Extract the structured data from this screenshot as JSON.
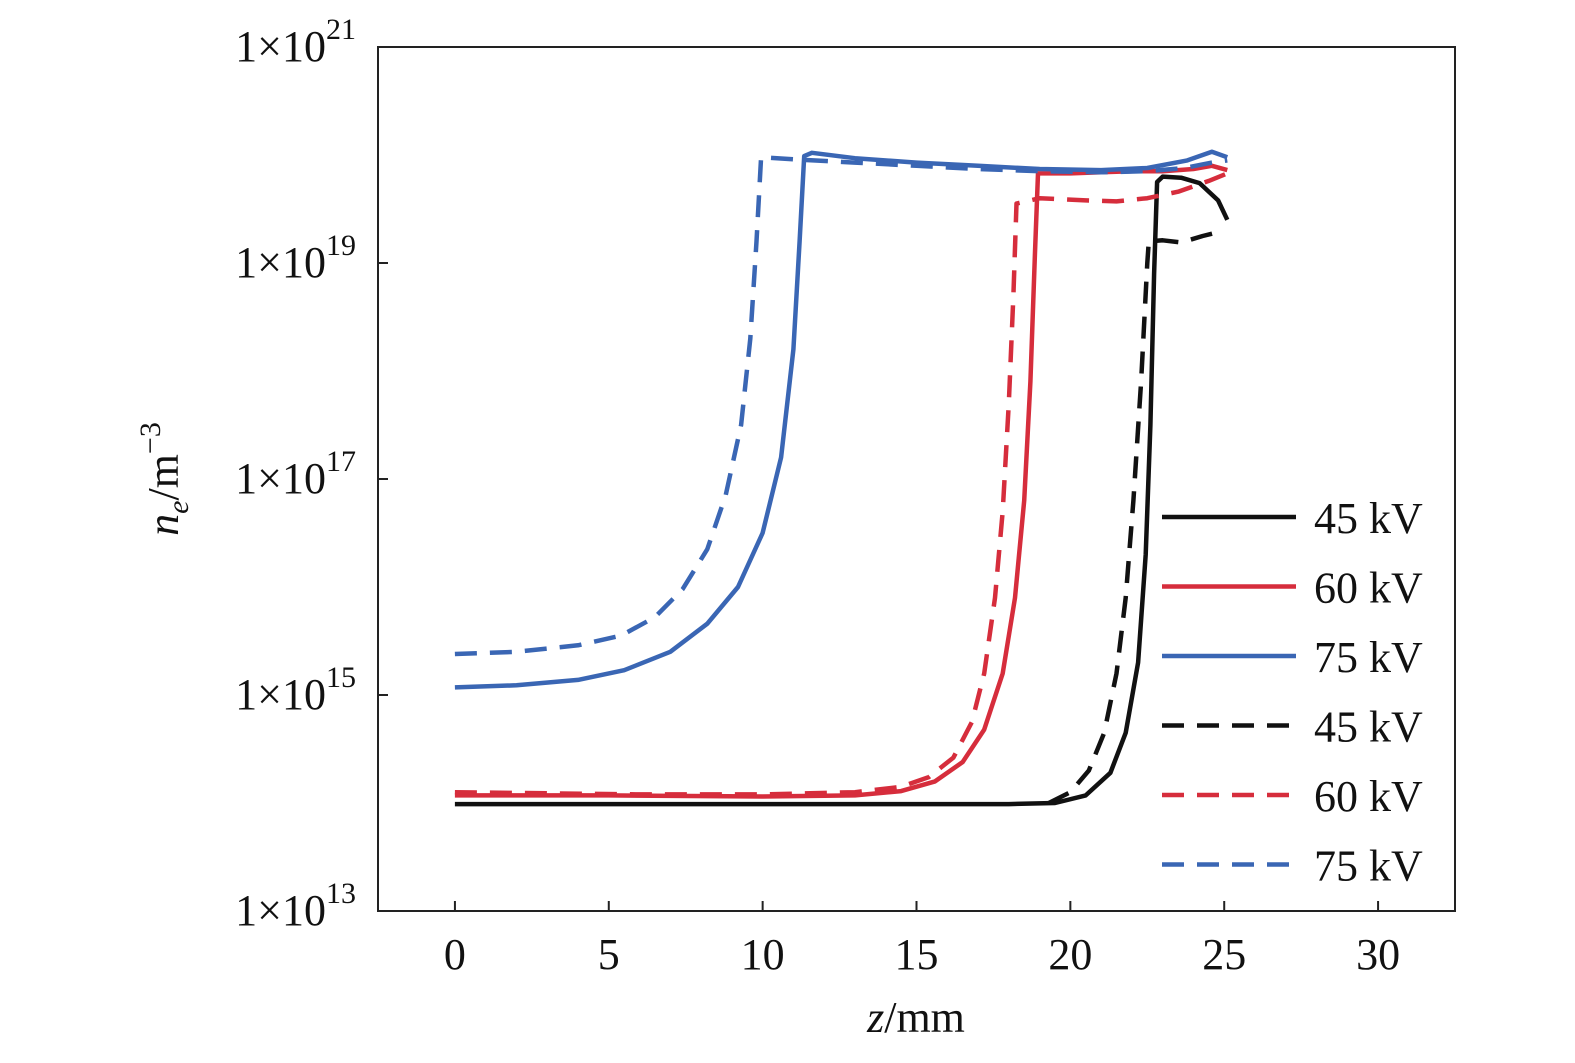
{
  "chart_data": {
    "type": "line",
    "title": "",
    "xlabel": {
      "var": "z",
      "unit": "/mm"
    },
    "ylabel": {
      "var": "n",
      "sub": "e",
      "unit": "/m",
      "sup": "−3"
    },
    "xlim": [
      -2.5,
      32.5
    ],
    "ylim_log10": [
      13,
      21
    ],
    "y_scale": "log",
    "grid": false,
    "legend_position": "right",
    "x_ticks": [
      {
        "value": 0,
        "label": "0"
      },
      {
        "value": 5,
        "label": "5"
      },
      {
        "value": 10,
        "label": "10"
      },
      {
        "value": 15,
        "label": "15"
      },
      {
        "value": 20,
        "label": "20"
      },
      {
        "value": 25,
        "label": "25"
      },
      {
        "value": 30,
        "label": "30"
      }
    ],
    "y_ticks": [
      {
        "log": 13,
        "mantissa": "1×10",
        "exp": "13"
      },
      {
        "log": 15,
        "mantissa": "1×10",
        "exp": "15"
      },
      {
        "log": 17,
        "mantissa": "1×10",
        "exp": "17"
      },
      {
        "log": 19,
        "mantissa": "1×10",
        "exp": "19"
      },
      {
        "log": 21,
        "mantissa": "1×10",
        "exp": "21"
      }
    ],
    "series": [
      {
        "name": "45 kV",
        "color": "#111111",
        "dash": "solid",
        "points": [
          [
            0,
            13.99
          ],
          [
            5,
            13.99
          ],
          [
            10,
            13.99
          ],
          [
            15,
            13.99
          ],
          [
            18,
            13.99
          ],
          [
            19.5,
            14.0
          ],
          [
            20.5,
            14.07
          ],
          [
            21.3,
            14.28
          ],
          [
            21.8,
            14.65
          ],
          [
            22.2,
            15.3
          ],
          [
            22.45,
            16.3
          ],
          [
            22.6,
            17.5
          ],
          [
            22.72,
            18.9
          ],
          [
            22.82,
            19.75
          ],
          [
            23.0,
            19.8
          ],
          [
            23.6,
            19.79
          ],
          [
            24.2,
            19.74
          ],
          [
            24.8,
            19.58
          ],
          [
            25.1,
            19.4
          ]
        ]
      },
      {
        "name": "60 kV",
        "color": "#d62d3c",
        "dash": "solid",
        "points": [
          [
            0,
            14.07
          ],
          [
            5,
            14.07
          ],
          [
            10,
            14.06
          ],
          [
            13,
            14.07
          ],
          [
            14.5,
            14.11
          ],
          [
            15.6,
            14.2
          ],
          [
            16.5,
            14.38
          ],
          [
            17.2,
            14.68
          ],
          [
            17.8,
            15.2
          ],
          [
            18.2,
            15.9
          ],
          [
            18.5,
            16.8
          ],
          [
            18.7,
            17.9
          ],
          [
            18.85,
            19.1
          ],
          [
            18.95,
            19.83
          ],
          [
            20,
            19.83
          ],
          [
            21,
            19.84
          ],
          [
            22,
            19.85
          ],
          [
            23,
            19.85
          ],
          [
            24,
            19.87
          ],
          [
            24.6,
            19.9
          ],
          [
            25.1,
            19.86
          ]
        ]
      },
      {
        "name": "75 kV",
        "color": "#3a66b4",
        "dash": "solid",
        "points": [
          [
            0,
            15.07
          ],
          [
            2,
            15.09
          ],
          [
            4,
            15.14
          ],
          [
            5.5,
            15.23
          ],
          [
            7,
            15.4
          ],
          [
            8.2,
            15.66
          ],
          [
            9.2,
            16.0
          ],
          [
            10,
            16.5
          ],
          [
            10.6,
            17.2
          ],
          [
            11.0,
            18.2
          ],
          [
            11.2,
            19.2
          ],
          [
            11.35,
            19.99
          ],
          [
            11.6,
            20.02
          ],
          [
            13,
            19.97
          ],
          [
            15,
            19.93
          ],
          [
            17,
            19.9
          ],
          [
            19,
            19.87
          ],
          [
            21,
            19.86
          ],
          [
            22.5,
            19.88
          ],
          [
            23.8,
            19.95
          ],
          [
            24.6,
            20.03
          ],
          [
            25.1,
            19.98
          ]
        ]
      },
      {
        "name": "45 kV",
        "color": "#111111",
        "dash": "dashed",
        "points": [
          [
            19.3,
            14.0
          ],
          [
            20.0,
            14.1
          ],
          [
            20.6,
            14.3
          ],
          [
            21.1,
            14.65
          ],
          [
            21.5,
            15.2
          ],
          [
            21.8,
            15.9
          ],
          [
            22.05,
            16.8
          ],
          [
            22.3,
            17.9
          ],
          [
            22.5,
            19.0
          ],
          [
            22.55,
            19.2
          ],
          [
            23.0,
            19.21
          ],
          [
            23.6,
            19.19
          ],
          [
            24.3,
            19.25
          ],
          [
            25.0,
            19.3
          ]
        ]
      },
      {
        "name": "60 kV",
        "color": "#d62d3c",
        "dash": "dashed",
        "points": [
          [
            0,
            14.1
          ],
          [
            3,
            14.09
          ],
          [
            6,
            14.08
          ],
          [
            10,
            14.08
          ],
          [
            13,
            14.1
          ],
          [
            14.5,
            14.15
          ],
          [
            15.4,
            14.24
          ],
          [
            16.2,
            14.42
          ],
          [
            16.8,
            14.75
          ],
          [
            17.2,
            15.2
          ],
          [
            17.55,
            15.9
          ],
          [
            17.8,
            16.7
          ],
          [
            18.0,
            17.7
          ],
          [
            18.15,
            18.7
          ],
          [
            18.25,
            19.55
          ],
          [
            19,
            19.6
          ],
          [
            20.5,
            19.58
          ],
          [
            21.5,
            19.57
          ],
          [
            22.5,
            19.6
          ],
          [
            23.5,
            19.66
          ],
          [
            24.5,
            19.76
          ],
          [
            25.1,
            19.83
          ]
        ]
      },
      {
        "name": "75 kV",
        "color": "#3a66b4",
        "dash": "dashed",
        "points": [
          [
            0,
            15.38
          ],
          [
            2,
            15.4
          ],
          [
            4,
            15.46
          ],
          [
            5.4,
            15.55
          ],
          [
            6.5,
            15.72
          ],
          [
            7.4,
            15.98
          ],
          [
            8.2,
            16.35
          ],
          [
            8.8,
            16.85
          ],
          [
            9.3,
            17.5
          ],
          [
            9.6,
            18.3
          ],
          [
            9.8,
            19.2
          ],
          [
            9.95,
            19.98
          ],
          [
            11,
            19.96
          ],
          [
            13,
            19.93
          ],
          [
            15,
            19.9
          ],
          [
            17,
            19.87
          ],
          [
            19,
            19.85
          ],
          [
            21,
            19.84
          ],
          [
            22.5,
            19.85
          ],
          [
            23.7,
            19.88
          ],
          [
            24.6,
            19.93
          ],
          [
            25.1,
            19.95
          ]
        ]
      }
    ]
  }
}
